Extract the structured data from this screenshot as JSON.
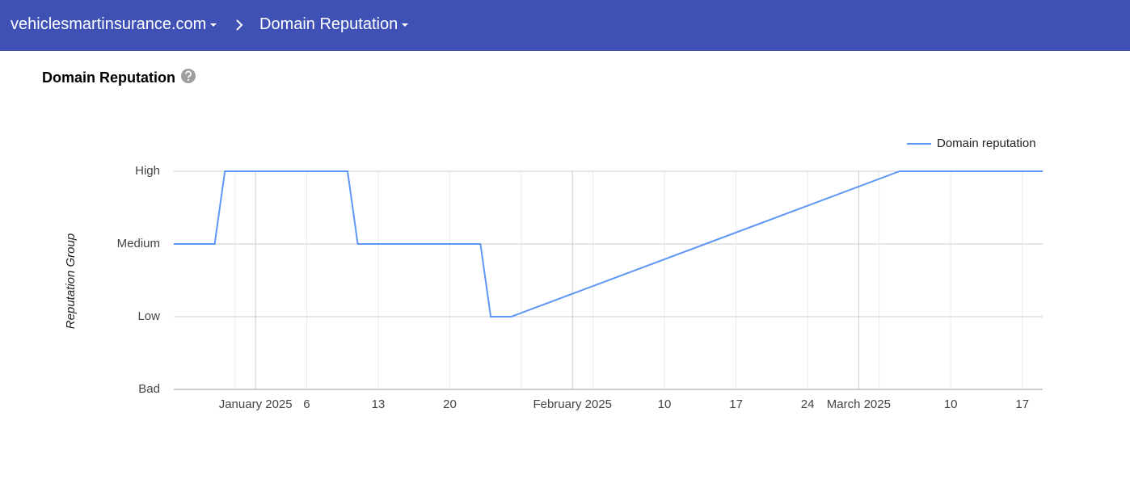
{
  "header": {
    "domain": "vehiclesmartinsurance.com",
    "page": "Domain Reputation"
  },
  "chart_data": {
    "type": "line",
    "title": "Domain Reputation",
    "y_label": "Reputation Group",
    "x": [
      "2024-12-24",
      "2024-12-28",
      "2024-12-29",
      "2025-01-10",
      "2025-01-11",
      "2025-01-23",
      "2025-01-24",
      "2025-01-26",
      "2025-03-05",
      "2025-03-19"
    ],
    "series": [
      {
        "name": "Domain reputation",
        "color": "#5e97f6",
        "values": [
          2,
          2,
          3,
          3,
          2,
          2,
          1,
          1,
          3,
          3
        ]
      }
    ],
    "xlim": [
      "2024-12-24",
      "2025-03-19"
    ],
    "xticks": [
      {
        "value": "2024-12-30",
        "label": null
      },
      {
        "value": "2025-01-01",
        "label": "January 2025"
      },
      {
        "value": "2025-01-06",
        "label": "6"
      },
      {
        "value": "2025-01-13",
        "label": "13"
      },
      {
        "value": "2025-01-20",
        "label": "20"
      },
      {
        "value": "2025-01-27",
        "label": null
      },
      {
        "value": "2025-02-01",
        "label": "February 2025"
      },
      {
        "value": "2025-02-03",
        "label": null
      },
      {
        "value": "2025-02-10",
        "label": "10"
      },
      {
        "value": "2025-02-17",
        "label": "17"
      },
      {
        "value": "2025-02-24",
        "label": "24"
      },
      {
        "value": "2025-03-01",
        "label": "March 2025"
      },
      {
        "value": "2025-03-03",
        "label": null
      },
      {
        "value": "2025-03-10",
        "label": "10"
      },
      {
        "value": "2025-03-17",
        "label": "17"
      }
    ],
    "ylim": [
      0,
      3
    ],
    "yticks": [
      {
        "value": 0,
        "label": "Bad"
      },
      {
        "value": 1,
        "label": "Low"
      },
      {
        "value": 2,
        "label": "Medium"
      },
      {
        "value": 3,
        "label": "High"
      }
    ],
    "grid": true,
    "legend": "top-right"
  }
}
